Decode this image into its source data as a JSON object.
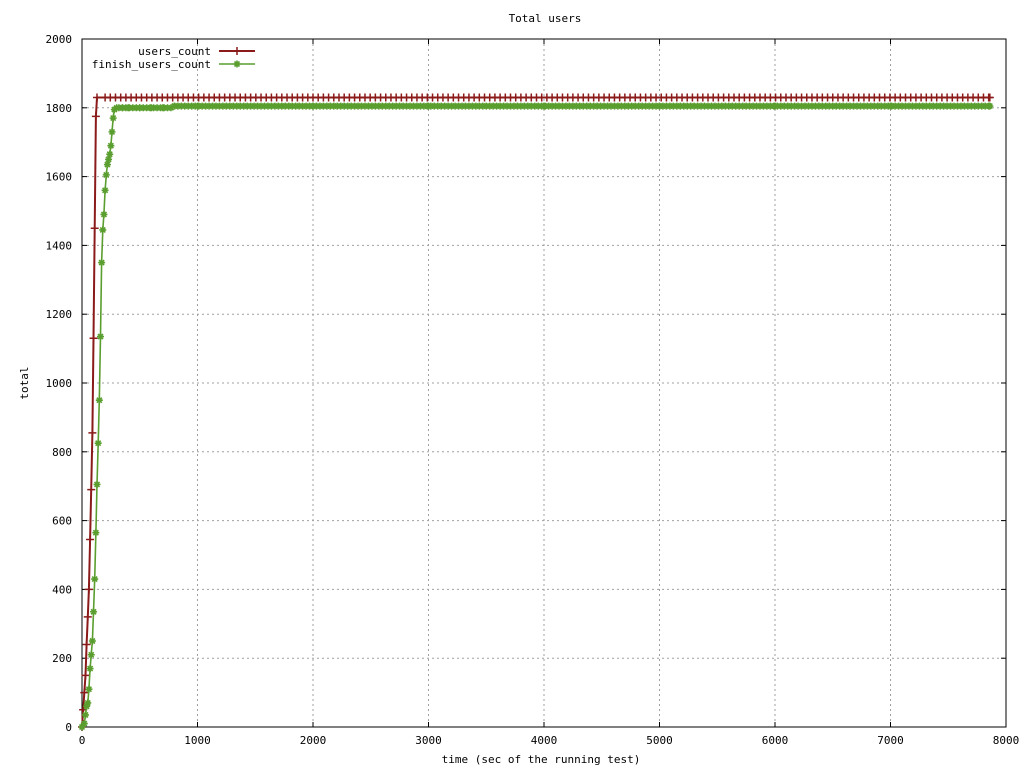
{
  "chart_data": {
    "type": "line",
    "title": "Total users",
    "xlabel": "time (sec of the running test)",
    "ylabel": "total",
    "xlim": [
      0,
      8000
    ],
    "ylim": [
      0,
      2000
    ],
    "x_ticks": [
      "0",
      "1000",
      "2000",
      "3000",
      "4000",
      "5000",
      "6000",
      "7000",
      "8000"
    ],
    "y_ticks": [
      "0",
      "200",
      "400",
      "600",
      "800",
      "1000",
      "1200",
      "1400",
      "1600",
      "1800",
      "2000"
    ],
    "grid": true,
    "legend_position": "top-left",
    "series": [
      {
        "name": "users_count",
        "color": "#8b1a1a",
        "marker": "plus",
        "x": [
          0,
          10,
          20,
          30,
          40,
          50,
          60,
          70,
          80,
          90,
          100,
          110,
          120,
          130,
          7860
        ],
        "y": [
          0,
          50,
          100,
          150,
          240,
          320,
          400,
          545,
          690,
          855,
          1130,
          1450,
          1775,
          1830,
          1830
        ]
      },
      {
        "name": "finish_users_count",
        "color": "#5a9e2f",
        "marker": "star",
        "x": [
          0,
          20,
          30,
          40,
          50,
          60,
          70,
          80,
          90,
          100,
          110,
          120,
          130,
          140,
          150,
          160,
          170,
          180,
          190,
          200,
          210,
          220,
          230,
          240,
          250,
          260,
          270,
          280,
          300,
          350,
          400,
          500,
          600,
          700,
          800,
          1000,
          2000,
          3000,
          4000,
          5000,
          6000,
          7000,
          7860
        ],
        "y": [
          0,
          10,
          35,
          60,
          70,
          110,
          170,
          210,
          250,
          335,
          430,
          565,
          705,
          825,
          950,
          1135,
          1350,
          1445,
          1490,
          1560,
          1605,
          1635,
          1650,
          1665,
          1690,
          1730,
          1770,
          1795,
          1800,
          1800,
          1800,
          1800,
          1800,
          1800,
          1805,
          1805,
          1805,
          1805,
          1805,
          1805,
          1805,
          1805,
          1805
        ]
      }
    ]
  }
}
